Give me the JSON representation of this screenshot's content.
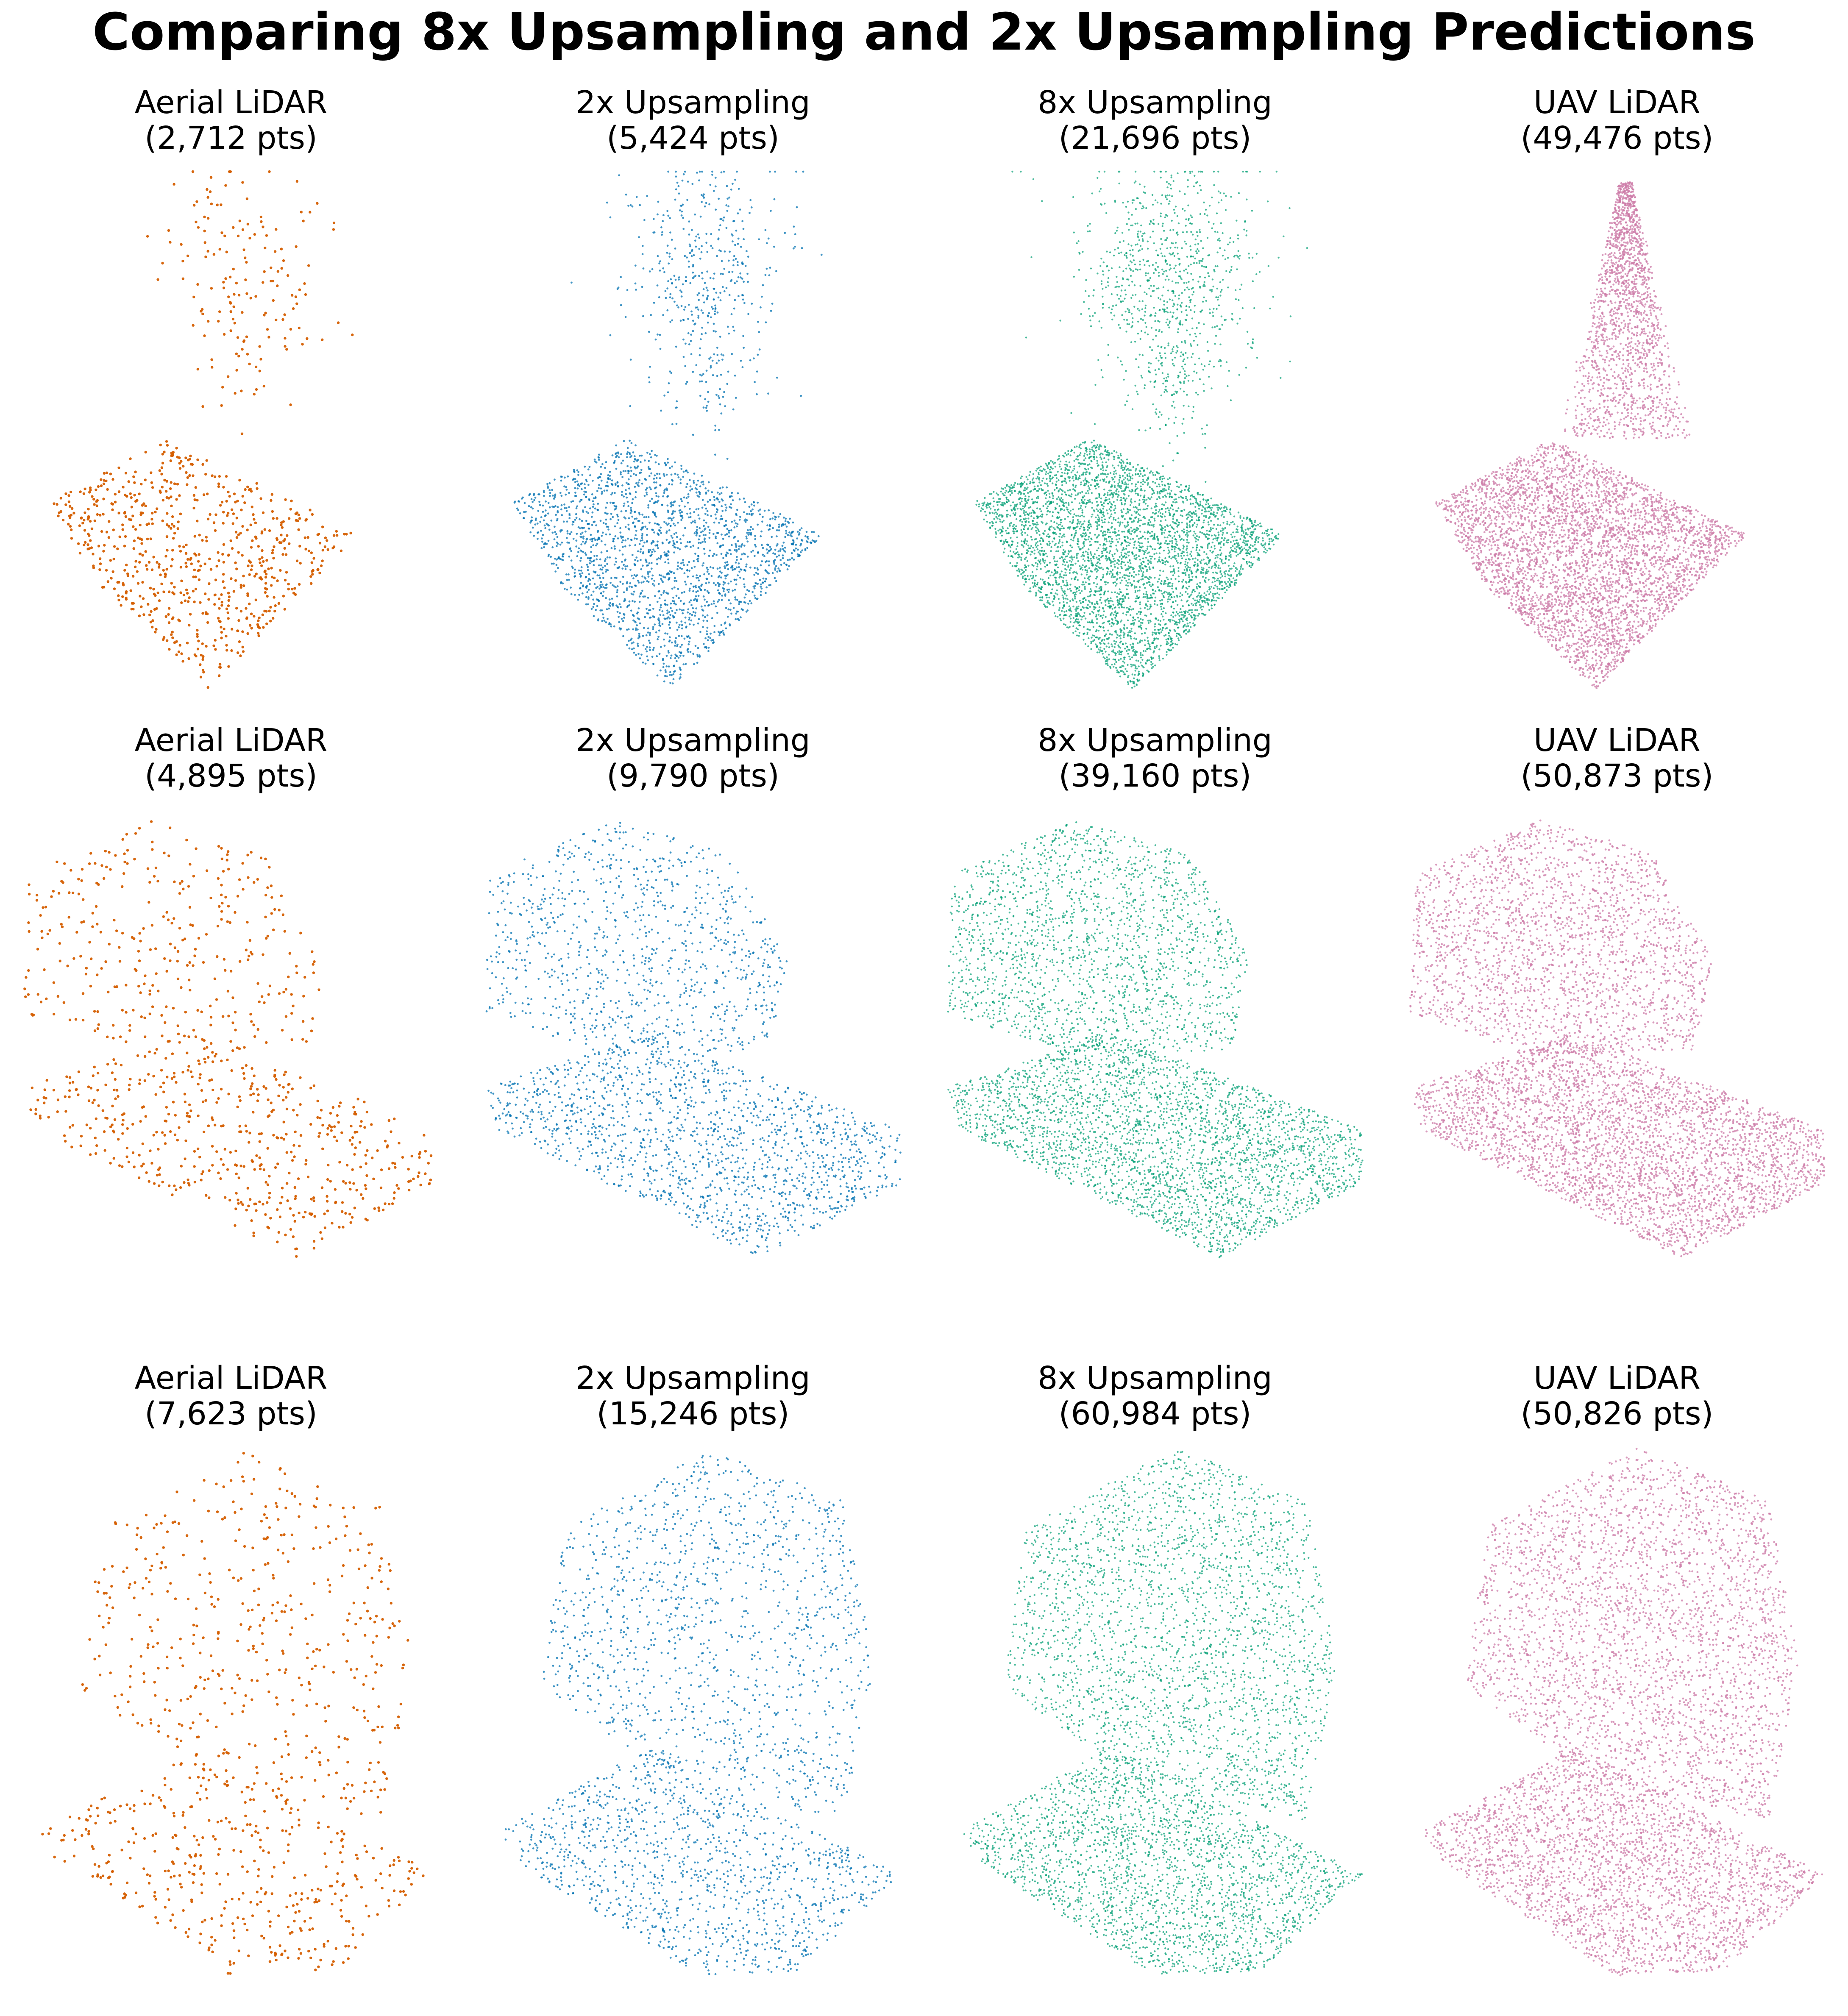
{
  "title": "Comparing 8x Upsampling and 2x Upsampling Predictions",
  "colors": {
    "aerial": "#d55e00",
    "up2x": "#0072b2",
    "up8x": "#009e73",
    "uav": "#cc79a7"
  },
  "chart_data": {
    "type": "scatter",
    "title": "Comparing 8x Upsampling and 2x Upsampling Predictions",
    "rows": [
      {
        "panels": [
          {
            "name": "Aerial LiDAR",
            "points": "(2,712 pts)",
            "kind": "aerial",
            "shape": "tree_sparse"
          },
          {
            "name": "2x Upsampling",
            "points": "(5,424 pts)",
            "kind": "up2x",
            "shape": "tree_sparse"
          },
          {
            "name": "8x Upsampling",
            "points": "(21,696 pts)",
            "kind": "up8x",
            "shape": "tree_sparse"
          },
          {
            "name": "UAV LiDAR",
            "points": "(49,476 pts)",
            "kind": "uav",
            "shape": "tree_sparse"
          }
        ]
      },
      {
        "panels": [
          {
            "name": "Aerial LiDAR",
            "points": "(4,895 pts)",
            "kind": "aerial",
            "shape": "wide_crown"
          },
          {
            "name": "2x Upsampling",
            "points": "(9,790 pts)",
            "kind": "up2x",
            "shape": "wide_crown"
          },
          {
            "name": "8x Upsampling",
            "points": "(39,160 pts)",
            "kind": "up8x",
            "shape": "wide_crown"
          },
          {
            "name": "UAV LiDAR",
            "points": "(50,873 pts)",
            "kind": "uav",
            "shape": "wide_crown"
          }
        ]
      },
      {
        "panels": [
          {
            "name": "Aerial LiDAR",
            "points": "(7,623 pts)",
            "kind": "aerial",
            "shape": "tall_canopy"
          },
          {
            "name": "2x Upsampling",
            "points": "(15,246 pts)",
            "kind": "up2x",
            "shape": "tall_canopy"
          },
          {
            "name": "8x Upsampling",
            "points": "(60,984 pts)",
            "kind": "up8x",
            "shape": "tall_canopy"
          },
          {
            "name": "UAV LiDAR",
            "points": "(50,826 pts)",
            "kind": "uav",
            "shape": "tall_canopy"
          }
        ]
      }
    ]
  }
}
